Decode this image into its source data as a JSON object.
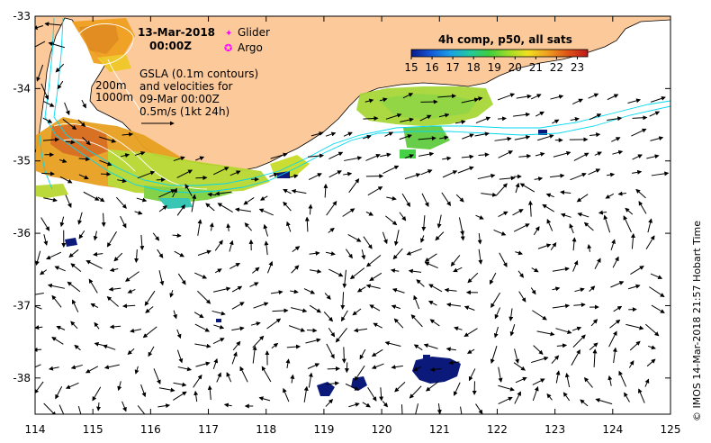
{
  "title": {
    "date": "13-Mar-2018",
    "time": "00:00Z"
  },
  "legend_markers": [
    {
      "label": "Glider",
      "symbol": "✦",
      "color": "#ff00ff"
    },
    {
      "label": "Argo",
      "symbol": "✪",
      "color": "#ff00ff"
    }
  ],
  "isobath_labels": [
    "200m",
    "1000m"
  ],
  "description_lines": [
    "GSLA (0.1m contours)",
    "and velocities for",
    "09-Mar 00:00Z",
    "0.5m/s (1kt 24h)"
  ],
  "colorbar": {
    "title": "4h comp, p50, all sats",
    "ticks": [
      "15",
      "16",
      "17",
      "18",
      "19",
      "20",
      "21",
      "22",
      "23"
    ],
    "range": [
      15,
      23.5
    ],
    "colors": [
      "#0a1a8c",
      "#1457d6",
      "#1aa0e6",
      "#22c8a0",
      "#3ccf3c",
      "#9edc28",
      "#f0e020",
      "#f0a020",
      "#e05818",
      "#c01818"
    ]
  },
  "axes": {
    "x_ticks": [
      "114",
      "115",
      "116",
      "117",
      "118",
      "119",
      "120",
      "121",
      "122",
      "123",
      "124",
      "125"
    ],
    "y_ticks": [
      "-33",
      "-34",
      "-35",
      "-36",
      "-37",
      "-38"
    ],
    "lon_range": [
      114,
      125
    ],
    "lat_range": [
      -33,
      -38.5
    ]
  },
  "credit": "© IMOS 14-Mar-2018 21:57 Hobart Time",
  "colors": {
    "land": "#fbc99a",
    "isobath": "#00d8f0",
    "contour": "#ffffff",
    "cold_patch": "#0b1a7a"
  }
}
